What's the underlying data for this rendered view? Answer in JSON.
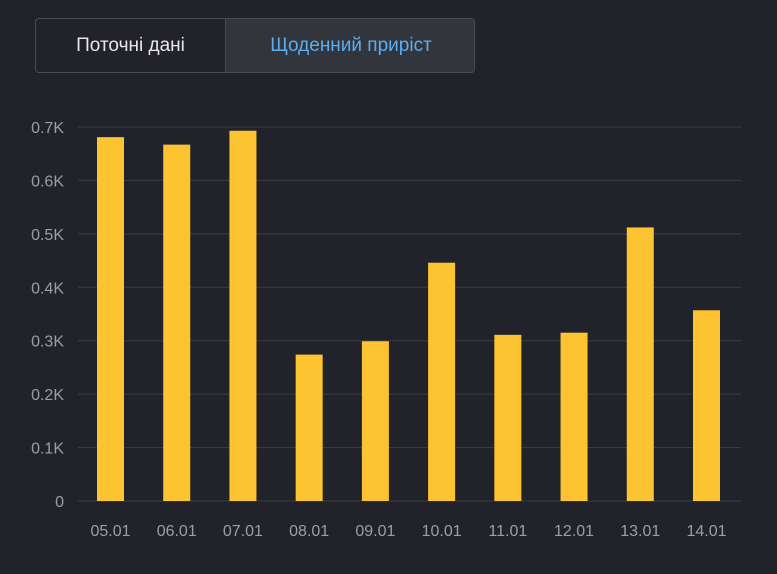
{
  "tabs": {
    "current": "Поточні дані",
    "daily": "Щоденний приріст",
    "selected": "daily"
  },
  "colors": {
    "background": "#22232a",
    "bar": "#fec330",
    "grid": "#3b3d45",
    "tick_text": "#9c9ea6",
    "active_tab_text": "#5aaef0"
  },
  "chart_data": {
    "type": "bar",
    "categories": [
      "05.01",
      "06.01",
      "07.01",
      "08.01",
      "09.01",
      "10.01",
      "11.01",
      "12.01",
      "13.01",
      "14.01"
    ],
    "values": [
      681,
      667,
      693,
      274,
      299,
      446,
      311,
      315,
      512,
      357
    ],
    "yticks": [
      0,
      100,
      200,
      300,
      400,
      500,
      600,
      700
    ],
    "ytick_labels": [
      "0",
      "0.1K",
      "0.2K",
      "0.3K",
      "0.4K",
      "0.5K",
      "0.6K",
      "0.7K"
    ],
    "ylim": [
      0,
      700
    ],
    "grid": true,
    "legend": "none",
    "title": "",
    "xlabel": "",
    "ylabel": ""
  }
}
